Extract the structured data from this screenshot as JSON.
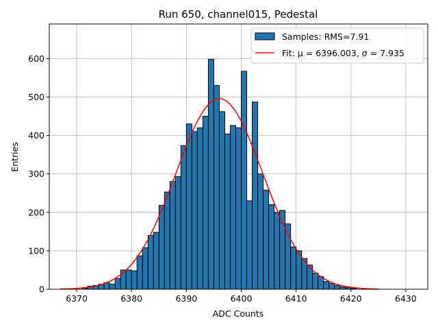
{
  "chart_data": {
    "type": "bar",
    "title": "Run 650, channel015, Pedestal",
    "xlabel": "ADC Counts",
    "ylabel": "Entries",
    "xlim": [
      6365,
      6434
    ],
    "ylim": [
      0,
      690
    ],
    "grid": true,
    "legend_position": "top-right",
    "x_ticks": [
      6370,
      6380,
      6390,
      6400,
      6410,
      6420,
      6430
    ],
    "y_ticks": [
      0,
      100,
      200,
      300,
      400,
      500,
      600
    ],
    "bin_width": 1,
    "bins": {
      "x_start": [
        6371,
        6372,
        6373,
        6374,
        6375,
        6376,
        6377,
        6378,
        6379,
        6380,
        6381,
        6382,
        6383,
        6384,
        6385,
        6386,
        6387,
        6388,
        6389,
        6390,
        6391,
        6392,
        6393,
        6394,
        6395,
        6396,
        6397,
        6398,
        6399,
        6400,
        6401,
        6402,
        6403,
        6404,
        6405,
        6406,
        6407,
        6408,
        6409,
        6410,
        6411,
        6412,
        6413,
        6414,
        6415,
        6416,
        6417,
        6418,
        6419,
        6420
      ],
      "values": [
        3,
        8,
        10,
        13,
        17,
        13,
        28,
        50,
        50,
        48,
        87,
        108,
        140,
        148,
        218,
        253,
        280,
        293,
        374,
        430,
        410,
        420,
        450,
        598,
        530,
        462,
        404,
        426,
        420,
        567,
        230,
        487,
        300,
        258,
        220,
        200,
        205,
        170,
        110,
        100,
        80,
        63,
        42,
        33,
        20,
        15,
        10,
        6,
        4,
        2
      ]
    },
    "series": [
      {
        "name": "Samples: RMS=7.91",
        "type": "histogram",
        "color": "#1f77b4",
        "edge_color": "#000000"
      },
      {
        "name": "Fit: μ = 6396.003, σ = 7.935",
        "type": "gaussian",
        "color": "#ff0000",
        "mu": 6396.003,
        "sigma": 7.935,
        "amplitude": 496,
        "x_range": [
          6367,
          6425
        ]
      }
    ]
  }
}
